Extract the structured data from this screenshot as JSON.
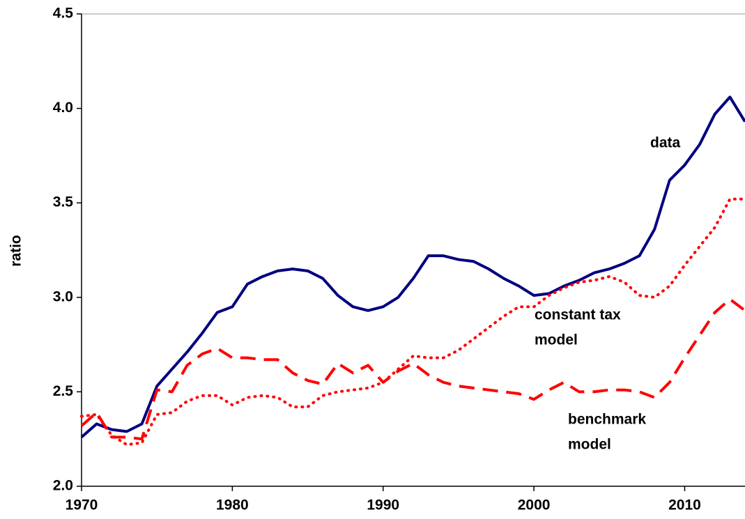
{
  "chart_data": {
    "type": "line",
    "y_label": "ratio",
    "x": [
      1970,
      1971,
      1972,
      1973,
      1974,
      1975,
      1976,
      1977,
      1978,
      1979,
      1980,
      1981,
      1982,
      1983,
      1984,
      1985,
      1986,
      1987,
      1988,
      1989,
      1990,
      1991,
      1992,
      1993,
      1994,
      1995,
      1996,
      1997,
      1998,
      1999,
      2000,
      2001,
      2002,
      2003,
      2004,
      2005,
      2006,
      2007,
      2008,
      2009,
      2010,
      2011,
      2012,
      2013,
      2014
    ],
    "xlim": [
      1970,
      2014
    ],
    "xticks": [
      1970,
      1980,
      1990,
      2000,
      2010
    ],
    "ylim": [
      2.0,
      4.5
    ],
    "yticks": [
      {
        "value": 2.0,
        "label": "2.0"
      },
      2.5,
      {
        "value": 3.0,
        "label": "3.0"
      },
      3.5,
      {
        "value": 4.0,
        "label": "4.0"
      },
      4.5
    ],
    "series": [
      {
        "label": [
          "data"
        ],
        "color": "#000080",
        "style": "solid",
        "values": [
          2.26,
          2.33,
          2.3,
          2.29,
          2.33,
          2.53,
          2.62,
          2.71,
          2.81,
          2.92,
          2.95,
          3.07,
          3.11,
          3.14,
          3.15,
          3.14,
          3.1,
          3.01,
          2.95,
          2.93,
          2.95,
          3.0,
          3.1,
          3.22,
          3.22,
          3.2,
          3.19,
          3.15,
          3.1,
          3.06,
          3.01,
          3.02,
          3.06,
          3.09,
          3.13,
          3.15,
          3.18,
          3.22,
          3.36,
          3.62,
          3.7,
          3.81,
          3.97,
          4.06,
          3.93
        ]
      },
      {
        "label": [
          "constant tax",
          "model"
        ],
        "color": "#ff0000",
        "style": "dotted",
        "values": [
          2.37,
          2.38,
          2.27,
          2.22,
          2.23,
          2.38,
          2.39,
          2.45,
          2.48,
          2.48,
          2.43,
          2.47,
          2.48,
          2.47,
          2.42,
          2.42,
          2.48,
          2.5,
          2.51,
          2.52,
          2.55,
          2.62,
          2.69,
          2.68,
          2.68,
          2.72,
          2.78,
          2.84,
          2.9,
          2.95,
          2.95,
          3.01,
          3.05,
          3.08,
          3.09,
          3.11,
          3.08,
          3.01,
          3.0,
          3.06,
          3.17,
          3.27,
          3.37,
          3.52,
          3.52
        ]
      },
      {
        "label": [
          "benchmark",
          "model"
        ],
        "color": "#ff0000",
        "style": "dashed",
        "values": [
          2.32,
          2.39,
          2.26,
          2.26,
          2.25,
          2.51,
          2.5,
          2.64,
          2.7,
          2.73,
          2.68,
          2.68,
          2.67,
          2.67,
          2.6,
          2.56,
          2.54,
          2.65,
          2.6,
          2.64,
          2.55,
          2.61,
          2.65,
          2.59,
          2.55,
          2.53,
          2.52,
          2.51,
          2.5,
          2.49,
          2.46,
          2.51,
          2.55,
          2.5,
          2.5,
          2.51,
          2.51,
          2.5,
          2.47,
          2.55,
          2.68,
          2.8,
          2.92,
          2.99,
          2.93
        ]
      }
    ]
  }
}
